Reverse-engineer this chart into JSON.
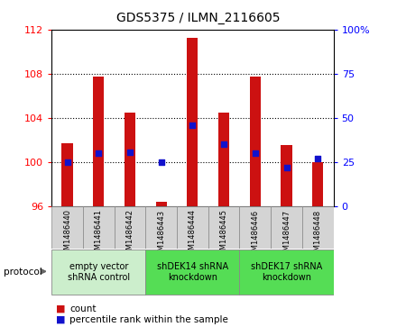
{
  "title": "GDS5375 / ILMN_2116605",
  "samples": [
    "GSM1486440",
    "GSM1486441",
    "GSM1486442",
    "GSM1486443",
    "GSM1486444",
    "GSM1486445",
    "GSM1486446",
    "GSM1486447",
    "GSM1486448"
  ],
  "bar_tops": [
    101.7,
    107.7,
    104.5,
    96.4,
    111.2,
    104.5,
    107.7,
    101.5,
    100.0
  ],
  "bar_bottom": 96.0,
  "percentile": [
    25.0,
    30.0,
    30.5,
    25.0,
    46.0,
    35.0,
    30.0,
    22.0,
    27.0
  ],
  "ylim_left": [
    96,
    112
  ],
  "ylim_right": [
    0,
    100
  ],
  "yticks_left": [
    96,
    100,
    104,
    108,
    112
  ],
  "yticks_right": [
    0,
    25,
    50,
    75,
    100
  ],
  "ytick_labels_right": [
    "0",
    "25",
    "50",
    "75",
    "100%"
  ],
  "bar_color": "#cc1111",
  "blue_color": "#1111cc",
  "groups": [
    {
      "label": "empty vector\nshRNA control",
      "start": 0,
      "end": 3,
      "color": "#cceecc"
    },
    {
      "label": "shDEK14 shRNA\nknockdown",
      "start": 3,
      "end": 6,
      "color": "#55dd55"
    },
    {
      "label": "shDEK17 shRNA\nknockdown",
      "start": 6,
      "end": 9,
      "color": "#55dd55"
    }
  ],
  "bar_width": 0.35,
  "title_fontsize": 10,
  "tick_fontsize": 8,
  "sample_fontsize": 6,
  "group_fontsize": 7
}
